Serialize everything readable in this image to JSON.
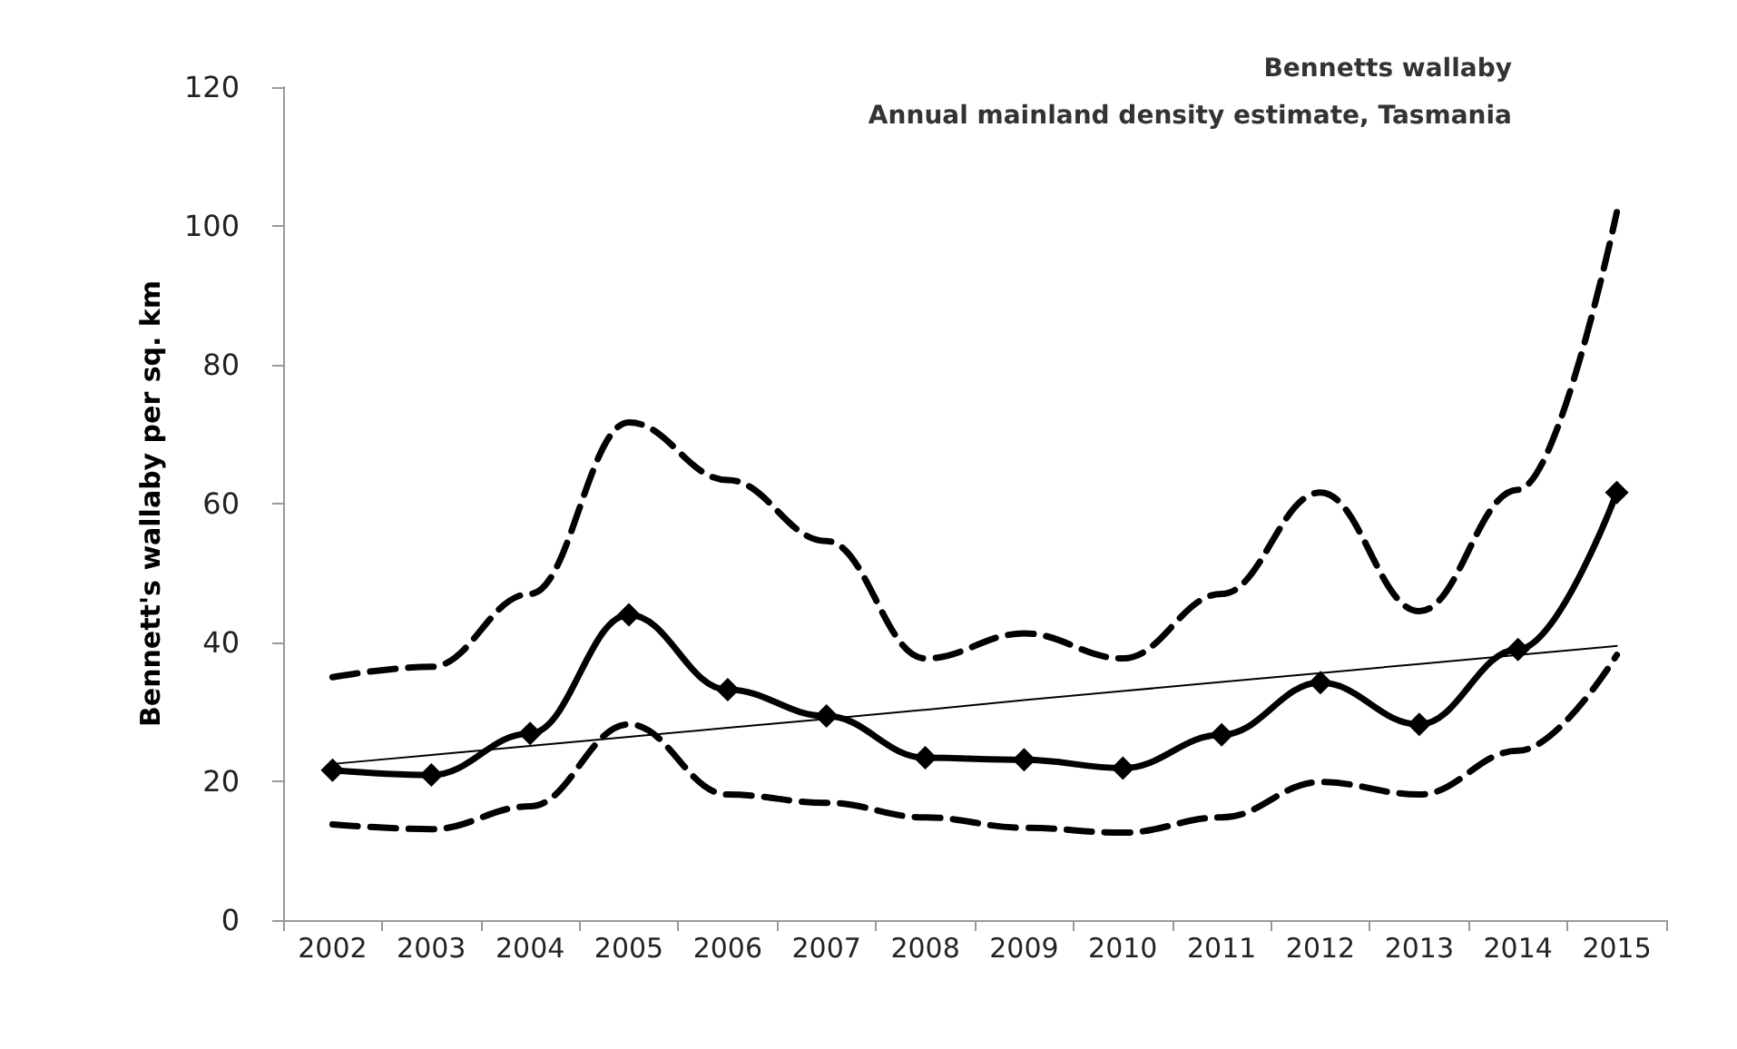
{
  "chart_data": {
    "type": "line",
    "title": "Bennetts wallaby",
    "subtitle": "Annual mainland density estimate, Tasmania",
    "ylabel": "Bennett's wallaby per sq. km",
    "categories": [
      "2002",
      "2003",
      "2004",
      "2005",
      "2006",
      "2007",
      "2008",
      "2009",
      "2010",
      "2011",
      "2012",
      "2013",
      "2014",
      "2015"
    ],
    "series": [
      {
        "color": "#000000",
        "line_style": "dashed",
        "marker": "none",
        "values": [
          35,
          36.5,
          47,
          71.7,
          63.4,
          54.6,
          37.7,
          41.3,
          37.7,
          47,
          61.6,
          44.5,
          62,
          102
        ]
      },
      {
        "color": "#000000",
        "line_style": "dashed",
        "marker": "none",
        "values": [
          13.8,
          13.1,
          16.4,
          28.2,
          18.1,
          16.9,
          14.8,
          13.3,
          12.6,
          14.8,
          19.9,
          18.1,
          24.4,
          38.2
        ]
      },
      {
        "color": "#000000",
        "line_style": "solid",
        "marker": "diamond",
        "values": [
          21.6,
          20.9,
          26.9,
          44,
          33.2,
          29.4,
          23.4,
          23.1,
          21.9,
          26.7,
          34.2,
          28.2,
          39,
          61.6
        ]
      },
      {
        "color": "#000000",
        "line_style": "solid",
        "marker": "none",
        "values": [
          22.5,
          23.8,
          25.1,
          26.4,
          27.7,
          29,
          30.3,
          31.7,
          33,
          34.3,
          35.6,
          36.9,
          38.2,
          39.5
        ]
      }
    ],
    "ylim": [
      0,
      120
    ],
    "yticks": [
      0,
      20,
      40,
      60,
      80,
      100,
      120
    ],
    "grid": false
  }
}
